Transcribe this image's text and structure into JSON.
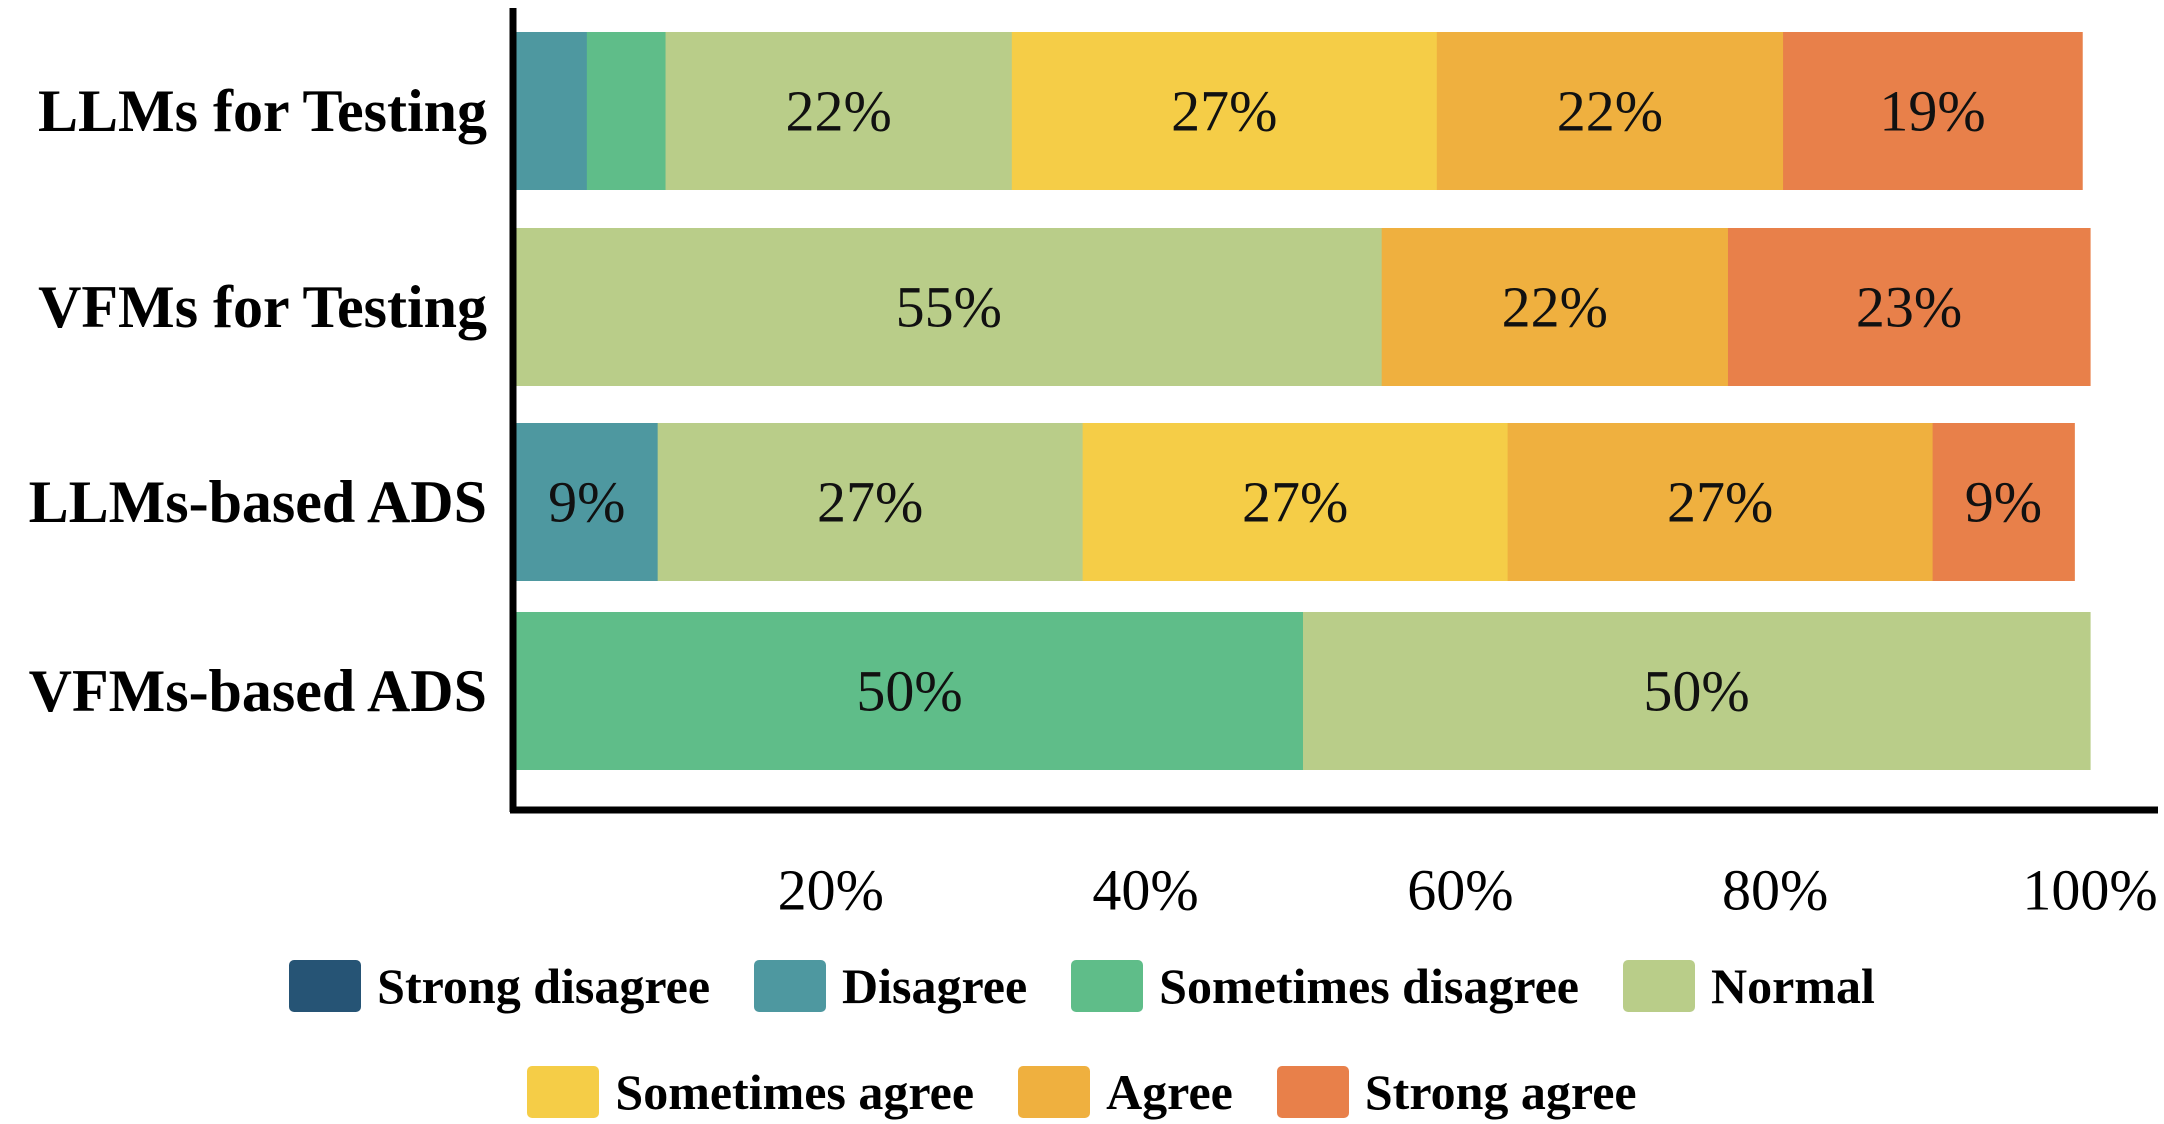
{
  "chart_data": {
    "type": "bar",
    "orientation": "horizontal",
    "stacked": true,
    "categories": [
      "LLMs for Testing",
      "VFMs for Testing",
      "LLMs-based ADS",
      "VFMs-based ADS"
    ],
    "series": [
      {
        "name": "Strong disagree",
        "color": "#265475",
        "values": [
          0,
          0,
          0,
          0
        ],
        "labels": [
          "",
          "",
          "",
          ""
        ]
      },
      {
        "name": "Disagree",
        "color": "#4e98a0",
        "values": [
          4.5,
          0,
          9,
          0
        ],
        "labels": [
          "",
          "",
          "9%",
          ""
        ]
      },
      {
        "name": "Sometimes disagree",
        "color": "#5fbd89",
        "values": [
          5,
          0,
          0,
          50
        ],
        "labels": [
          "",
          "",
          "",
          "50%"
        ]
      },
      {
        "name": "Normal",
        "color": "#b9cd89",
        "values": [
          22,
          55,
          27,
          50
        ],
        "labels": [
          "22%",
          "55%",
          "27%",
          "50%"
        ]
      },
      {
        "name": "Sometimes agree",
        "color": "#f5cd47",
        "values": [
          27,
          0,
          27,
          0
        ],
        "labels": [
          "27%",
          "",
          "27%",
          ""
        ]
      },
      {
        "name": "Agree",
        "color": "#efb03f",
        "values": [
          22,
          22,
          27,
          0
        ],
        "labels": [
          "22%",
          "22%",
          "27%",
          ""
        ]
      },
      {
        "name": "Strong agree",
        "color": "#e8804a",
        "values": [
          19,
          23,
          9,
          0
        ],
        "labels": [
          "19%",
          "23%",
          "9%",
          ""
        ]
      }
    ],
    "xlim": [
      0,
      100
    ],
    "xticks": [
      20,
      40,
      60,
      80,
      100
    ],
    "xtick_labels": [
      "20%",
      "40%",
      "60%",
      "80%",
      "100%"
    ],
    "title": "",
    "xlabel": "",
    "ylabel": "",
    "grid": false,
    "legend_position": "bottom"
  },
  "legend": {
    "row1": [
      {
        "label": "Strong disagree",
        "color": "#265475"
      },
      {
        "label": "Disagree",
        "color": "#4e98a0"
      },
      {
        "label": "Sometimes disagree",
        "color": "#5fbd89"
      },
      {
        "label": "Normal",
        "color": "#b9cd89"
      }
    ],
    "row2": [
      {
        "label": "Sometimes agree",
        "color": "#f5cd47"
      },
      {
        "label": "Agree",
        "color": "#efb03f"
      },
      {
        "label": "Strong agree",
        "color": "#e8804a"
      }
    ]
  }
}
